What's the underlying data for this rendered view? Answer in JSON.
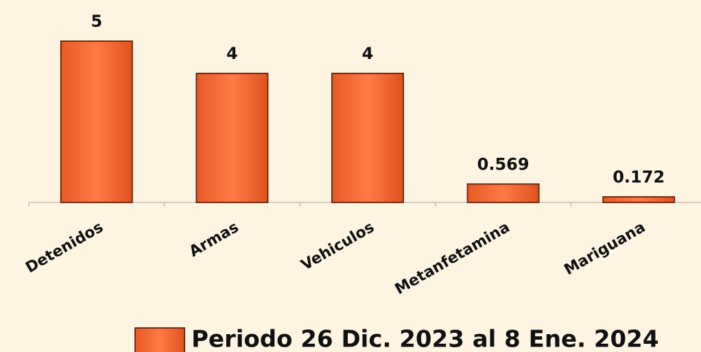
{
  "chart_data": {
    "type": "bar",
    "categories": [
      "Detenidos",
      "Armas",
      "Vehiculos",
      "Metanfetamina",
      "Mariguana"
    ],
    "series": [
      {
        "name": "Periodo 26 Dic. 2023 al 8 Ene. 2024",
        "color": "#f4703a",
        "values": [
          5,
          4,
          4,
          0.569,
          0.172
        ]
      }
    ]
  }
}
